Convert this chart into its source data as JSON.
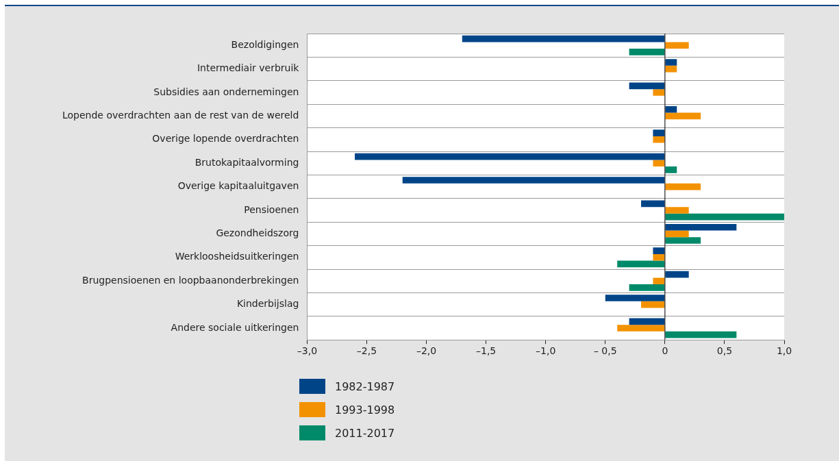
{
  "chart_data": {
    "type": "bar",
    "orientation": "horizontal",
    "categories": [
      "Bezoldigingen",
      "Intermediair verbruik",
      "Subsidies aan ondernemingen",
      "Lopende overdrachten aan de rest van de wereld",
      "Overige lopende overdrachten",
      "Brutokapitaalvorming",
      "Overige kapitaaluitgaven",
      "Pensioenen",
      "Gezondheidszorg",
      "Werkloosheidsuitkeringen",
      "Brugpensioenen en loopbaanonderbrekingen",
      "Kinderbijslag",
      "Andere sociale uitkeringen"
    ],
    "series": [
      {
        "name": "1982-1987",
        "color": "#004488",
        "values": [
          -1.7,
          0.1,
          -0.3,
          0.1,
          -0.1,
          -2.6,
          -2.2,
          -0.2,
          0.6,
          -0.1,
          0.2,
          -0.5,
          -0.3
        ]
      },
      {
        "name": "1993-1998",
        "color": "#f39200",
        "values": [
          0.2,
          0.1,
          -0.1,
          0.3,
          -0.1,
          -0.1,
          0.3,
          0.2,
          0.2,
          -0.1,
          -0.1,
          -0.2,
          -0.4
        ]
      },
      {
        "name": "2011-2017",
        "color": "#008a6a",
        "values": [
          -0.3,
          null,
          null,
          null,
          null,
          0.1,
          null,
          1.0,
          0.3,
          -0.4,
          -0.3,
          null,
          0.6
        ]
      }
    ],
    "xlim": [
      -3,
      1
    ],
    "xticks": [
      {
        "value": -3,
        "label": "–3,0"
      },
      {
        "value": -2.5,
        "label": "–2,5"
      },
      {
        "value": -2,
        "label": "–2,0"
      },
      {
        "value": -1.5,
        "label": "–1,5"
      },
      {
        "value": -1,
        "label": "–1,0"
      },
      {
        "value": -0.5,
        "label": "– 0,5"
      },
      0,
      {
        "value": 0.5,
        "label": "0,5"
      },
      {
        "value": 1,
        "label": "1,0"
      }
    ],
    "grid": "y",
    "legend": "bottom"
  }
}
